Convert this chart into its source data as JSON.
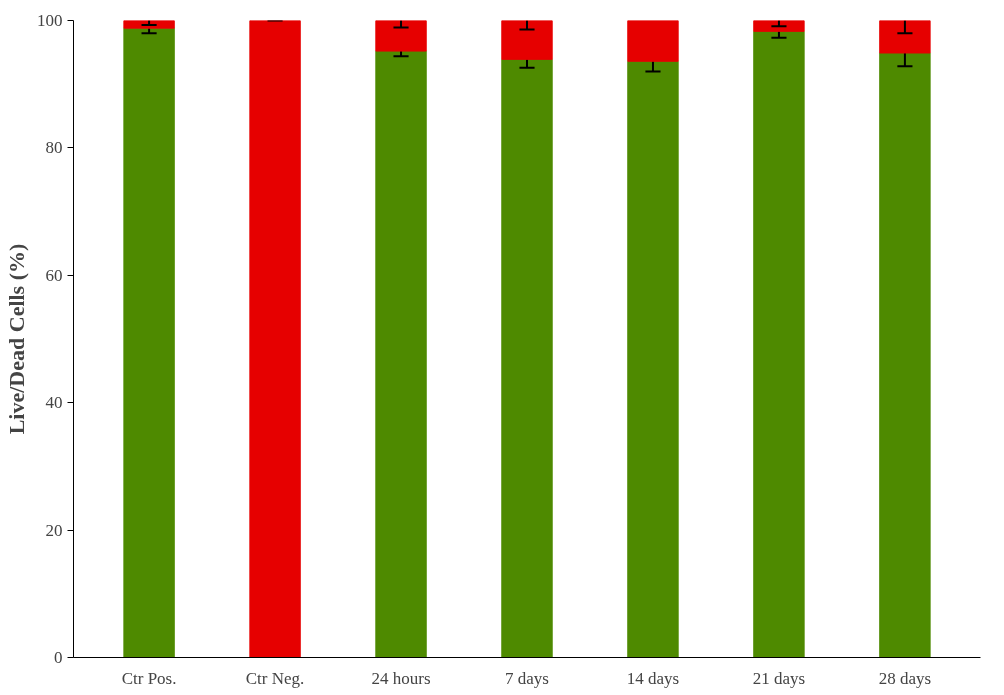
{
  "chart_data": {
    "type": "bar",
    "stacked": true,
    "ylabel": "Live/Dead Cells (%)",
    "categories": [
      "Ctr Pos.",
      "Ctr Neg.",
      "24 hours",
      "7 days",
      "14 days",
      "21 days",
      "28 days"
    ],
    "series": [
      {
        "color": "#4e8a00",
        "values": [
          98.8,
          0,
          95.2,
          93.9,
          93.6,
          98.3,
          94.9
        ],
        "errors": [
          [
            98.0,
            98.8
          ],
          [
            0,
            0
          ],
          [
            94.4,
            95.2
          ],
          [
            92.6,
            93.9
          ],
          [
            92.0,
            93.6
          ],
          [
            97.3,
            98.3
          ],
          [
            92.8,
            94.9
          ]
        ]
      },
      {
        "color": "#e60000",
        "values": [
          1.2,
          100,
          4.8,
          6.1,
          6.4,
          1.7,
          5.1
        ],
        "errors": [
          [
            99.3,
            100
          ],
          [
            100,
            100
          ],
          [
            98.9,
            100
          ],
          [
            98.6,
            100
          ],
          null,
          [
            99.1,
            100
          ],
          [
            98.0,
            100
          ]
        ]
      }
    ],
    "ylim": [
      0,
      100
    ],
    "yticks": [
      0,
      20,
      40,
      60,
      80,
      100
    ],
    "grid": false
  }
}
